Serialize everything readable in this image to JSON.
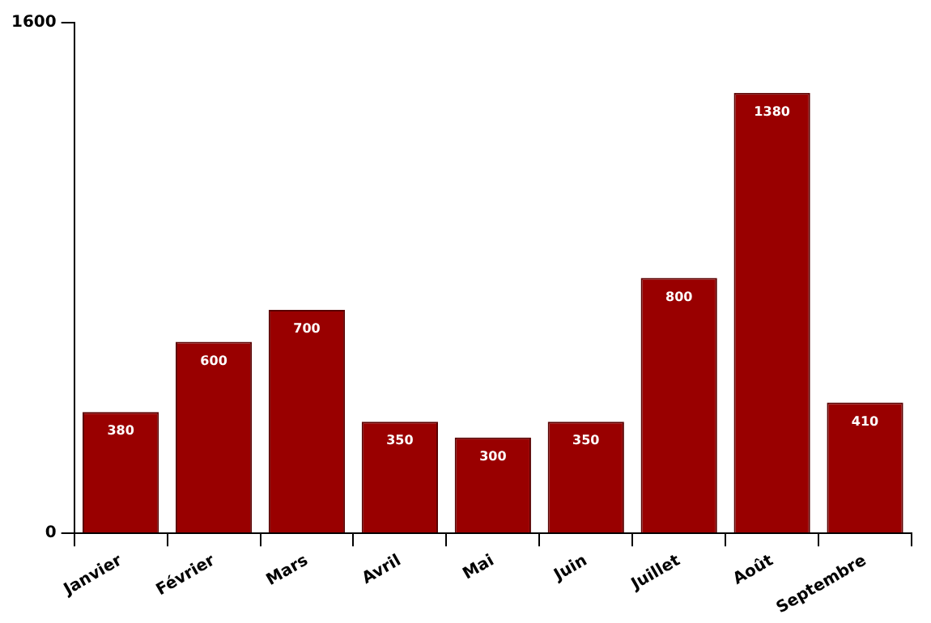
{
  "chart_data": {
    "type": "bar",
    "categories": [
      "Janvier",
      "Février",
      "Mars",
      "Avril",
      "Mai",
      "Juin",
      "Juillet",
      "Août",
      "Septembre"
    ],
    "values": [
      380,
      600,
      700,
      350,
      300,
      350,
      800,
      1380,
      410
    ],
    "color": "#990000",
    "ylim": [
      0,
      1600
    ],
    "yticks": [
      0,
      1600
    ],
    "grid": false,
    "legend": false,
    "data_labels": true
  }
}
